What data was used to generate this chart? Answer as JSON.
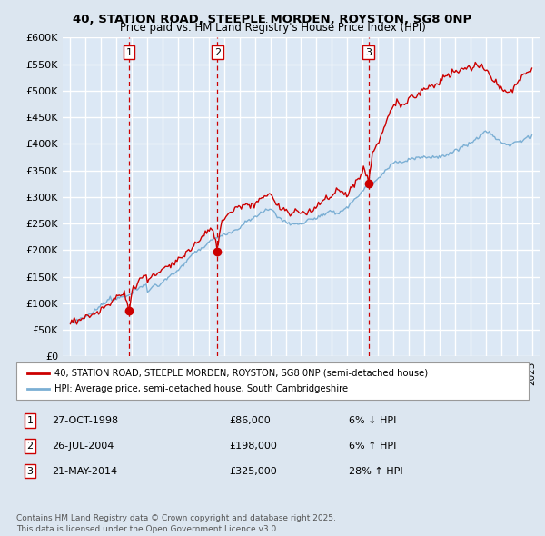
{
  "title_line1": "40, STATION ROAD, STEEPLE MORDEN, ROYSTON, SG8 0NP",
  "title_line2": "Price paid vs. HM Land Registry's House Price Index (HPI)",
  "legend_line1": "40, STATION ROAD, STEEPLE MORDEN, ROYSTON, SG8 0NP (semi-detached house)",
  "legend_line2": "HPI: Average price, semi-detached house, South Cambridgeshire",
  "transactions": [
    {
      "num": 1,
      "date": "27-OCT-1998",
      "price": 86000,
      "pct": "6%",
      "dir": "↓",
      "x_year": 1998.82
    },
    {
      "num": 2,
      "date": "26-JUL-2004",
      "price": 198000,
      "pct": "6%",
      "dir": "↑",
      "x_year": 2004.56
    },
    {
      "num": 3,
      "date": "21-MAY-2014",
      "price": 325000,
      "pct": "28%",
      "dir": "↑",
      "x_year": 2014.38
    }
  ],
  "ylabel_ticks": [
    "£0",
    "£50K",
    "£100K",
    "£150K",
    "£200K",
    "£250K",
    "£300K",
    "£350K",
    "£400K",
    "£450K",
    "£500K",
    "£550K",
    "£600K"
  ],
  "ytick_values": [
    0,
    50000,
    100000,
    150000,
    200000,
    250000,
    300000,
    350000,
    400000,
    450000,
    500000,
    550000,
    600000
  ],
  "xmin": 1994.5,
  "xmax": 2025.5,
  "ymin": 0,
  "ymax": 600000,
  "background_color": "#dce6f0",
  "plot_bg_color": "#dce8f5",
  "grid_color": "#ffffff",
  "hpi_color": "#7bafd4",
  "price_color": "#cc0000",
  "dashed_color": "#cc0000",
  "footnote": "Contains HM Land Registry data © Crown copyright and database right 2025.\nThis data is licensed under the Open Government Licence v3.0."
}
